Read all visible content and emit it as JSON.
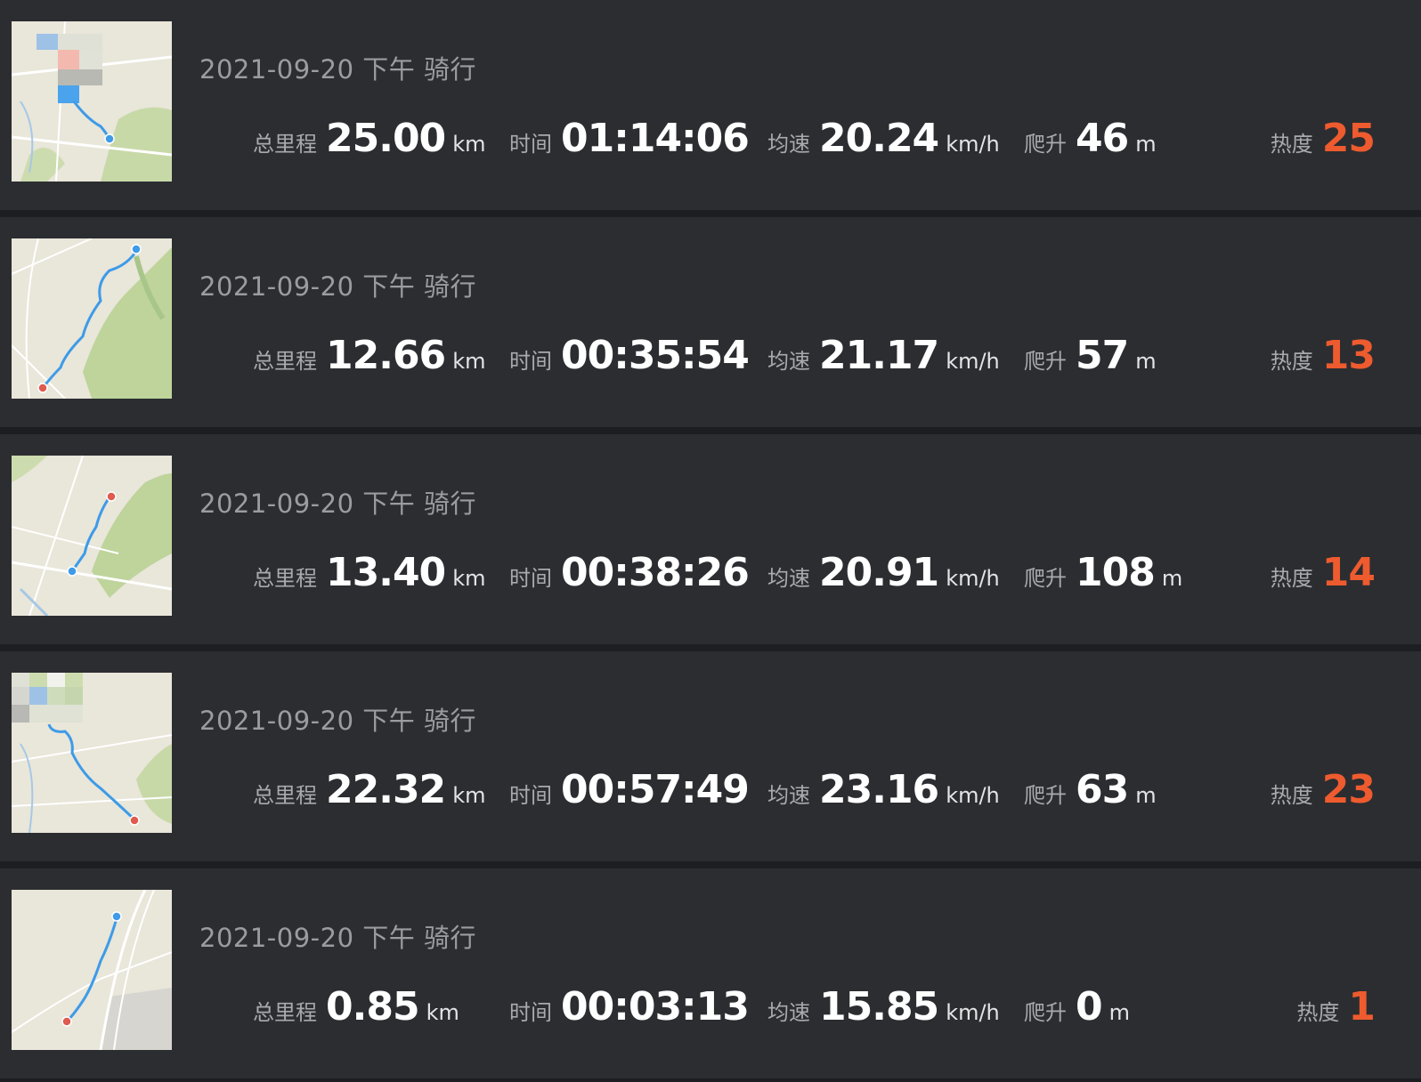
{
  "colors": {
    "background": "#2c2d31",
    "separator": "#1d1e21",
    "title_text": "#9b9ca0",
    "value_text": "#ffffff",
    "heat_accent": "#ee5b2e",
    "route_line": "#3d9be8",
    "start_marker": "#3d9be8",
    "end_marker": "#e05a4f"
  },
  "labels": {
    "distance": "总里程",
    "time": "时间",
    "speed": "均速",
    "climb": "爬升",
    "heat": "热度"
  },
  "units": {
    "distance": "km",
    "speed": "km/h",
    "climb": "m"
  },
  "rides": [
    {
      "title": "2021-09-20 下午 骑行",
      "distance": "25.00",
      "time": "01:14:06",
      "speed": "20.24",
      "climb": "46",
      "heat": "25",
      "map_icon": "route-map-thumbnail"
    },
    {
      "title": "2021-09-20 下午 骑行",
      "distance": "12.66",
      "time": "00:35:54",
      "speed": "21.17",
      "climb": "57",
      "heat": "13",
      "map_icon": "route-map-thumbnail"
    },
    {
      "title": "2021-09-20 下午 骑行",
      "distance": "13.40",
      "time": "00:38:26",
      "speed": "20.91",
      "climb": "108",
      "heat": "14",
      "map_icon": "route-map-thumbnail"
    },
    {
      "title": "2021-09-20 下午 骑行",
      "distance": "22.32",
      "time": "00:57:49",
      "speed": "23.16",
      "climb": "63",
      "heat": "23",
      "map_icon": "route-map-thumbnail"
    },
    {
      "title": "2021-09-20 下午 骑行",
      "distance": "0.85",
      "time": "00:03:13",
      "speed": "15.85",
      "climb": "0",
      "heat": "1",
      "map_icon": "route-map-thumbnail"
    }
  ]
}
